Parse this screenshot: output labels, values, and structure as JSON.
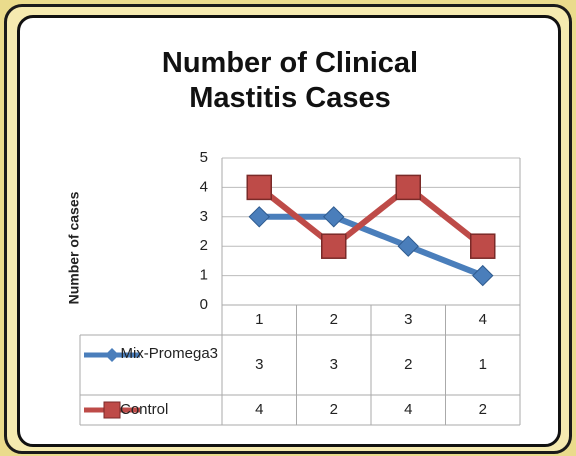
{
  "chart_data": {
    "type": "line",
    "title": "Number of Clinical Mastitis Cases",
    "y_label": "Number of cases",
    "categories": [
      "1",
      "2",
      "3",
      "4"
    ],
    "series": [
      {
        "name": "Mix-Promega3",
        "color": "#4a7ebb",
        "marker": "diamond",
        "values": [
          3,
          3,
          2,
          1
        ]
      },
      {
        "name": "Control",
        "color": "#be4b48",
        "marker": "square",
        "values": [
          4,
          2,
          4,
          2
        ]
      }
    ],
    "ylim": [
      0,
      5
    ],
    "yticks": [
      0,
      1,
      2,
      3,
      4,
      5
    ],
    "grid": true,
    "data_table": true
  }
}
